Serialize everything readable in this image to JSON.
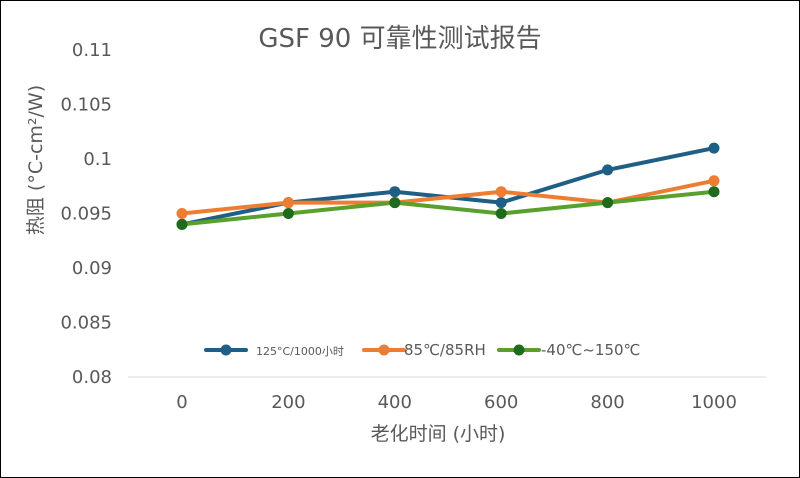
{
  "chart_data": {
    "type": "line",
    "title": "GSF 90 可靠性测试报告",
    "xlabel": "老化时间 (小时)",
    "ylabel": "热阻 (°C-cm²/W)",
    "categories": [
      "0",
      "200",
      "400",
      "600",
      "800",
      "1000"
    ],
    "ylim": [
      0.08,
      0.11
    ],
    "yticks": [
      "0.08",
      "0.085",
      "0.09",
      "0.095",
      "0.1",
      "0.105",
      "0.11"
    ],
    "grid": false,
    "legend_position": "bottom-inside",
    "series": [
      {
        "name": "125°C/1000小时",
        "color": "#1f5f85",
        "values": [
          0.094,
          0.096,
          0.097,
          0.096,
          0.099,
          0.101
        ]
      },
      {
        "name": "85℃/85RH",
        "color": "#ed7d31",
        "values": [
          0.095,
          0.096,
          0.096,
          0.097,
          0.096,
          0.098
        ]
      },
      {
        "name": "-40℃~150℃",
        "color": "#5aa02c",
        "marker_color": "#1e6b1e",
        "values": [
          0.094,
          0.095,
          0.096,
          0.095,
          0.096,
          0.097
        ]
      }
    ]
  }
}
